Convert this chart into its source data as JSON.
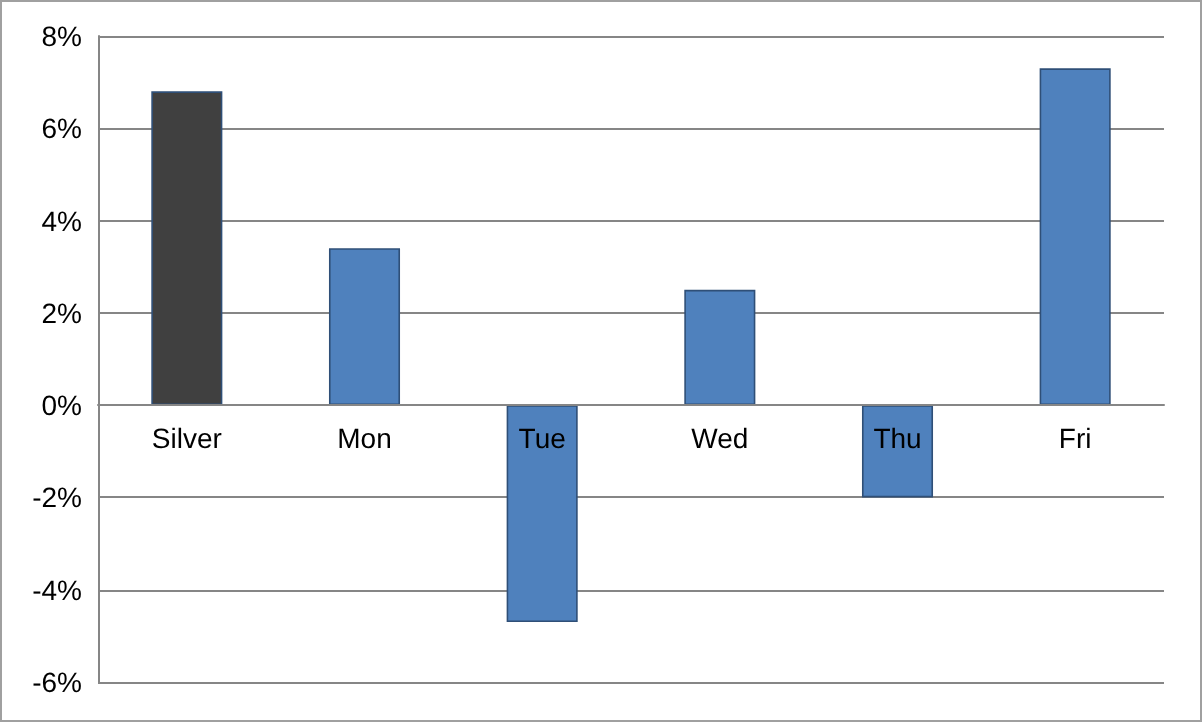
{
  "chart_data": {
    "type": "bar",
    "categories": [
      "Silver",
      "Mon",
      "Tue",
      "Wed",
      "Thu",
      "Fri"
    ],
    "values": [
      6.8,
      3.4,
      -4.7,
      2.5,
      -2.0,
      7.3
    ],
    "colors": [
      "#404040",
      "#4f81bd",
      "#4f81bd",
      "#4f81bd",
      "#4f81bd",
      "#4f81bd"
    ],
    "ylim": [
      -6,
      8
    ],
    "yticks": [
      {
        "value": -6,
        "label": "-6%"
      },
      {
        "value": -4,
        "label": "-4%"
      },
      {
        "value": -2,
        "label": "-2%"
      },
      {
        "value": 0,
        "label": "0%"
      },
      {
        "value": 2,
        "label": "2%"
      },
      {
        "value": 4,
        "label": "4%"
      },
      {
        "value": 6,
        "label": "6%"
      },
      {
        "value": 8,
        "label": "8%"
      }
    ],
    "grid": "y"
  }
}
